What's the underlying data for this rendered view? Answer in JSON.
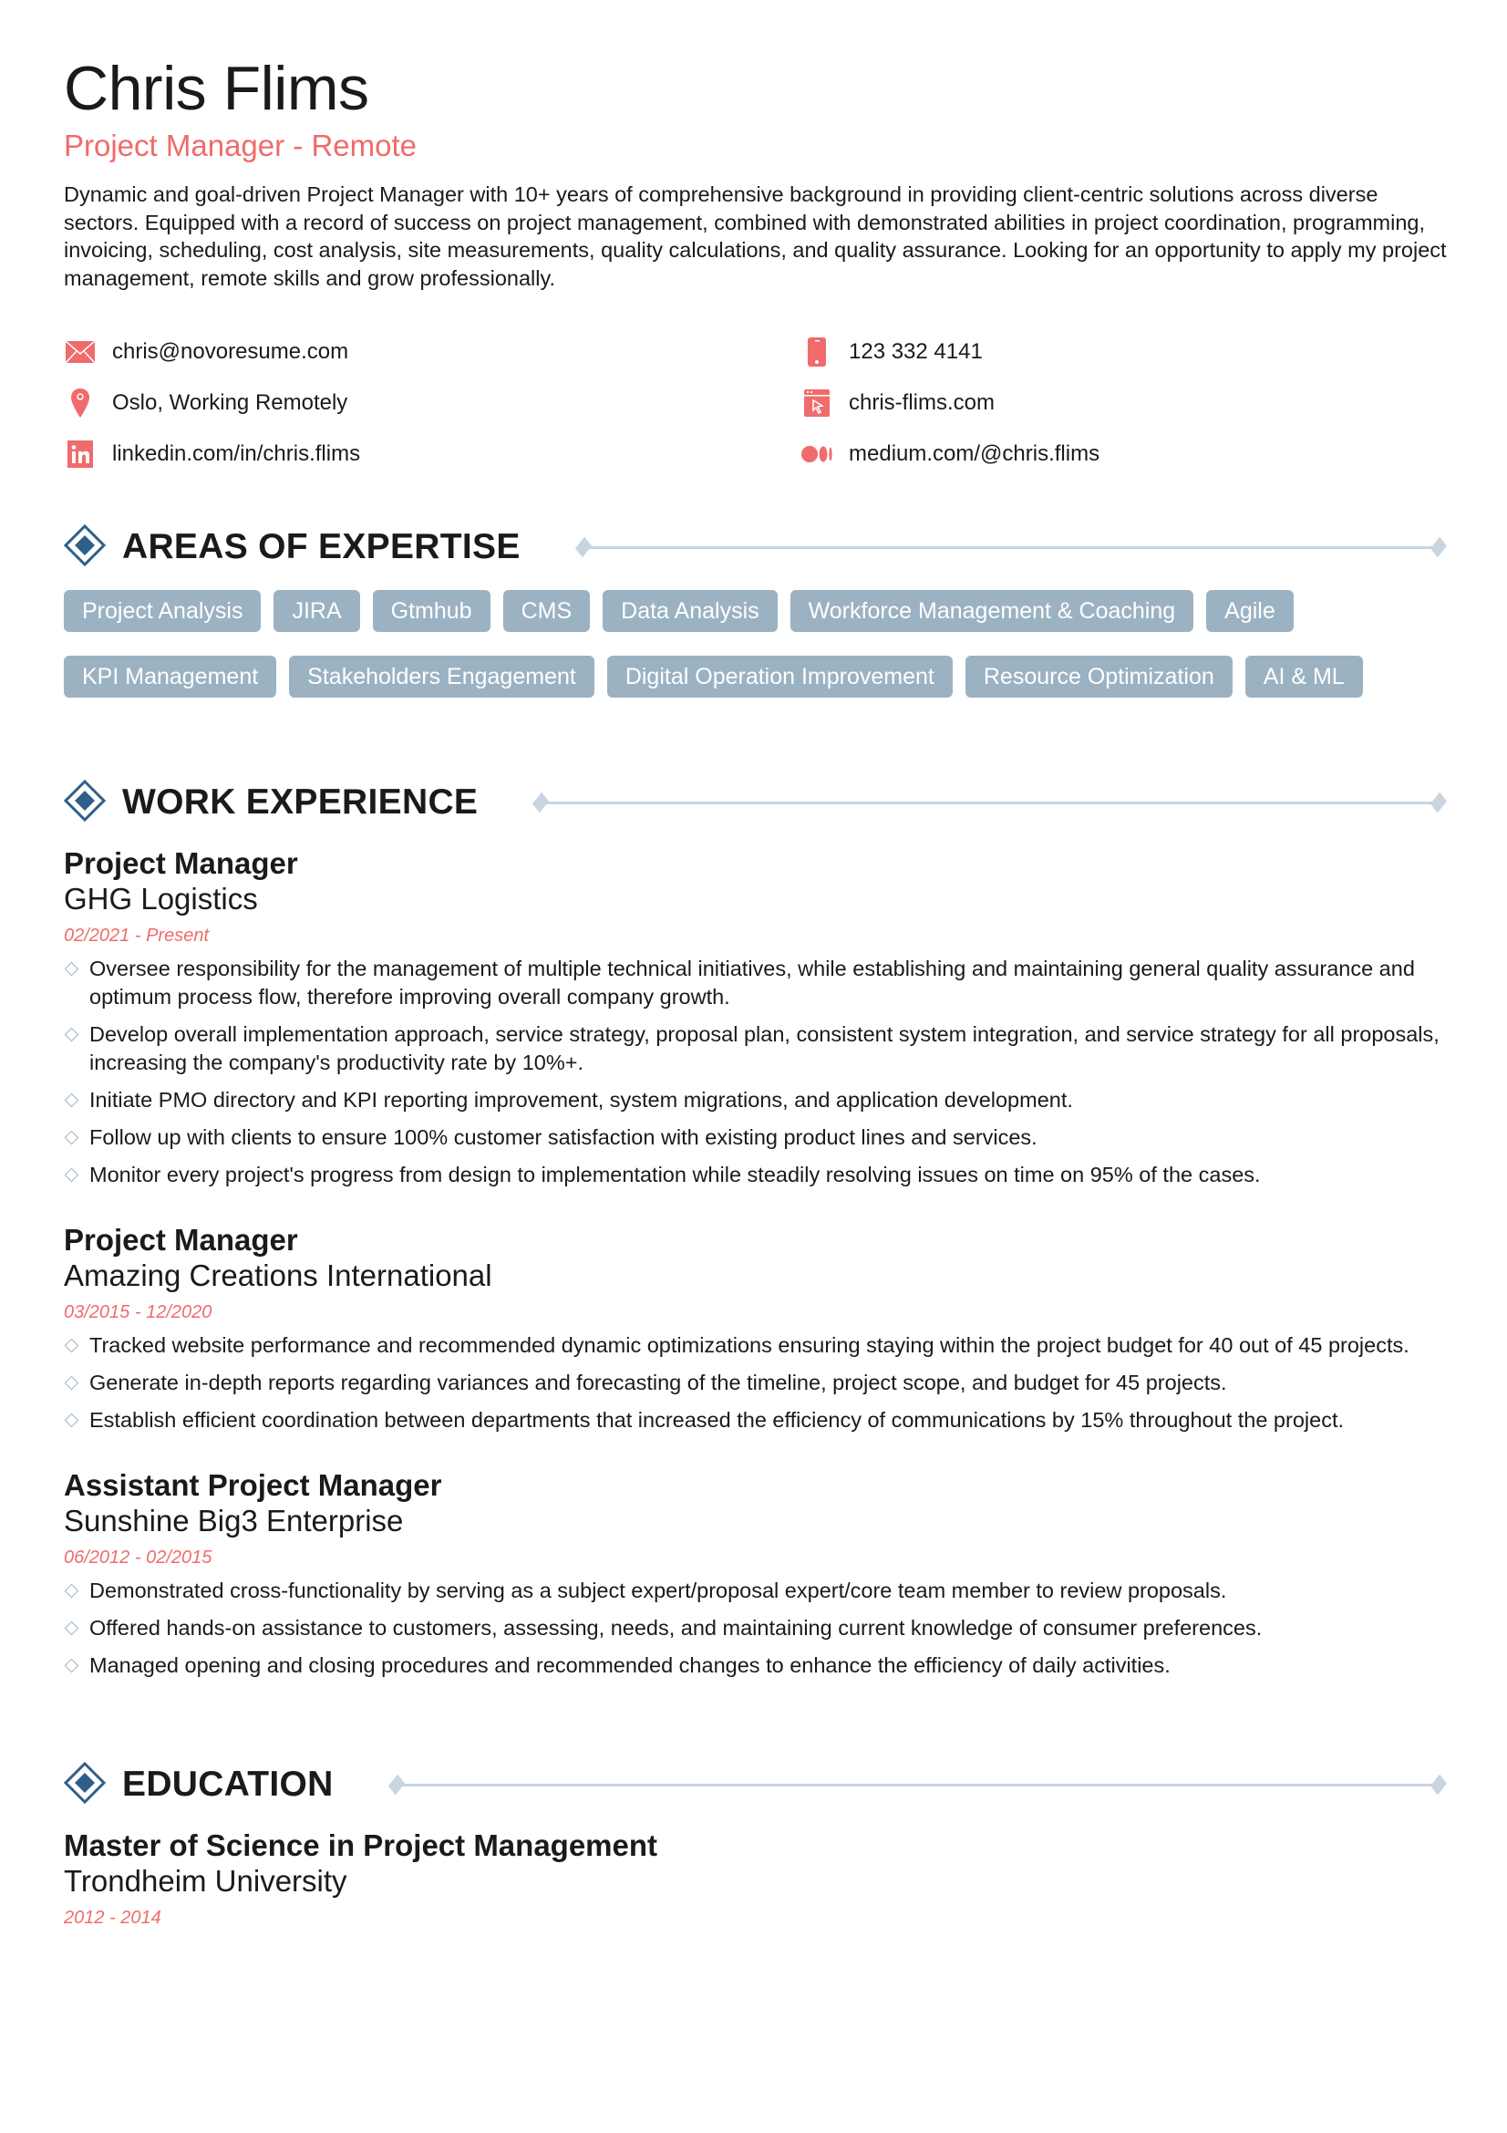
{
  "header": {
    "name": "Chris Flims",
    "role": "Project Manager - Remote",
    "summary": "Dynamic and goal-driven Project Manager with 10+ years of comprehensive background in providing client-centric solutions across diverse sectors. Equipped with a record of success on project management, combined with demonstrated abilities in project coordination, programming, invoicing, scheduling, cost analysis, site measurements, quality calculations, and quality assurance. Looking for an opportunity to apply my project management, remote skills and grow professionally."
  },
  "contacts": [
    {
      "icon": "email-icon",
      "text": "chris@novoresume.com"
    },
    {
      "icon": "phone-icon",
      "text": "123 332 4141"
    },
    {
      "icon": "location-icon",
      "text": "Oslo, Working Remotely"
    },
    {
      "icon": "website-icon",
      "text": "chris-flims.com"
    },
    {
      "icon": "linkedin-icon",
      "text": "linkedin.com/in/chris.flims"
    },
    {
      "icon": "medium-icon",
      "text": "medium.com/@chris.flims"
    }
  ],
  "colors": {
    "accent": "#f06b6b",
    "primary": "#2e5f8a",
    "tag": "#9bb2c3",
    "rule": "#c8d5e0"
  },
  "expertise": {
    "title": "AREAS OF EXPERTISE",
    "tags": [
      "Project Analysis",
      "JIRA",
      "Gtmhub",
      "CMS",
      "Data Analysis",
      "Workforce Management & Coaching",
      "Agile",
      "KPI Management",
      "Stakeholders Engagement",
      "Digital Operation Improvement",
      "Resource Optimization",
      "AI & ML"
    ]
  },
  "work": {
    "title": "WORK EXPERIENCE",
    "jobs": [
      {
        "title": "Project Manager",
        "company": "GHG Logistics",
        "dates": "02/2021 - Present",
        "bullets": [
          "Oversee responsibility for the management of multiple technical initiatives, while establishing and maintaining general quality assurance and optimum process flow, therefore improving overall company growth.",
          "Develop overall implementation approach, service strategy, proposal plan, consistent system integration, and service strategy for all proposals, increasing the company's productivity rate by 10%+.",
          "Initiate PMO directory and KPI reporting improvement, system migrations, and application development.",
          "Follow up with clients to ensure 100% customer satisfaction with existing product lines and services.",
          "Monitor every project's progress from design to implementation while steadily resolving issues on time on 95% of the cases."
        ]
      },
      {
        "title": "Project Manager",
        "company": "Amazing Creations International",
        "dates": "03/2015 - 12/2020",
        "bullets": [
          "Tracked website performance and recommended dynamic optimizations ensuring staying within the project budget for 40 out of 45 projects.",
          "Generate in-depth reports regarding variances and forecasting of the timeline, project scope, and budget for 45 projects.",
          "Establish efficient coordination between departments that increased the efficiency of communications by 15% throughout the project."
        ]
      },
      {
        "title": "Assistant Project Manager",
        "company": "Sunshine Big3 Enterprise",
        "dates": "06/2012 - 02/2015",
        "bullets": [
          "Demonstrated cross-functionality by serving as a subject expert/proposal expert/core team member to review proposals.",
          "Offered hands-on assistance to customers, assessing, needs, and maintaining current knowledge of consumer preferences.",
          "Managed opening and closing procedures and recommended changes to enhance the efficiency of daily activities."
        ]
      }
    ]
  },
  "education": {
    "title": "EDUCATION",
    "items": [
      {
        "degree": "Master of Science in Project Management",
        "school": "Trondheim University",
        "dates": "2012 - 2014"
      }
    ]
  }
}
